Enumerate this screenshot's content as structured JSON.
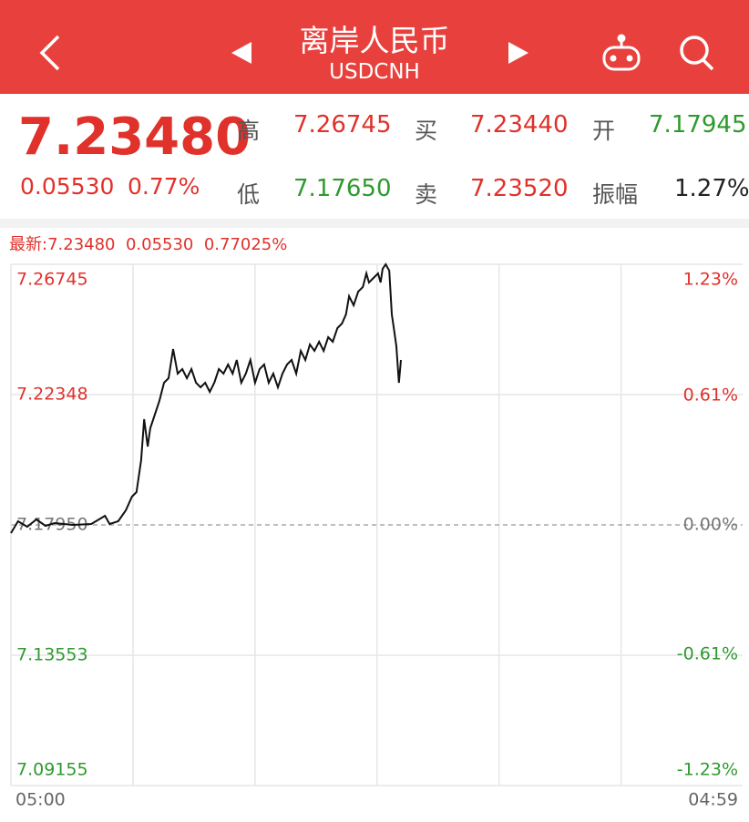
{
  "header": {
    "title": "离岸人民币",
    "subtitle": "USDCNH"
  },
  "quote": {
    "price": "7.23480",
    "change": "0.05530",
    "change_pct": "0.77%",
    "high_label": "高",
    "high": "7.26745",
    "bid_label": "买",
    "bid": "7.23440",
    "open_label": "开",
    "open": "7.17945",
    "low_label": "低",
    "low": "7.17650",
    "ask_label": "卖",
    "ask": "7.23520",
    "amplitude_label": "振幅",
    "amplitude": "1.27%"
  },
  "chart_data": {
    "type": "line",
    "summary": "最新:7.23480  0.05530  0.77025%",
    "color": "#111111",
    "x": [
      0,
      14,
      32,
      50,
      68,
      86,
      122,
      158,
      185,
      194,
      211,
      226,
      238,
      247,
      256,
      262,
      269,
      274,
      283,
      292,
      301,
      310,
      319,
      328,
      337,
      346,
      355,
      364,
      373,
      382,
      391,
      400,
      409,
      418,
      427,
      436,
      444,
      453,
      462,
      471,
      480,
      489,
      498,
      507,
      516,
      525,
      534,
      543,
      552,
      561,
      570,
      579,
      588,
      597,
      606,
      615,
      624,
      633,
      642,
      651,
      659,
      665,
      674,
      683,
      692,
      699,
      704,
      713,
      722,
      727,
      731,
      737,
      744,
      749,
      753,
      758,
      763,
      767
    ],
    "values": [
      7.17673,
      7.18073,
      7.17888,
      7.18135,
      7.17919,
      7.18012,
      7.1795,
      7.17981,
      7.18258,
      7.17981,
      7.18073,
      7.18442,
      7.18903,
      7.19057,
      7.20133,
      7.21517,
      7.20595,
      7.2121,
      7.21671,
      7.22132,
      7.22747,
      7.22901,
      7.23885,
      7.23055,
      7.23208,
      7.22901,
      7.23208,
      7.22747,
      7.22593,
      7.22747,
      7.2244,
      7.22747,
      7.23208,
      7.23055,
      7.23362,
      7.23055,
      7.23516,
      7.22747,
      7.23055,
      7.23516,
      7.22747,
      7.23208,
      7.23362,
      7.22747,
      7.23055,
      7.22593,
      7.23055,
      7.23362,
      7.23516,
      7.23055,
      7.23823,
      7.23516,
      7.24039,
      7.23823,
      7.24131,
      7.23823,
      7.24285,
      7.24131,
      7.24592,
      7.24746,
      7.25053,
      7.25668,
      7.25361,
      7.25822,
      7.25976,
      7.26437,
      7.2613,
      7.26283,
      7.26437,
      7.2613,
      7.26591,
      7.26745,
      7.26529,
      7.25053,
      7.24592,
      7.23977,
      7.22747,
      7.23516
    ],
    "xlim": [
      0,
      1439
    ],
    "xticks": [
      {
        "value": 0,
        "label": "05:00"
      },
      {
        "value": 1439,
        "label": "04:59"
      }
    ],
    "xgrid": [
      240,
      480,
      720,
      960,
      1200
    ],
    "ylim": [
      7.09155,
      7.26745
    ],
    "yticks": [
      7.09155,
      7.13553,
      {
        "value": 7.1795,
        "label": "7.17950"
      },
      7.22348,
      7.26745
    ],
    "y2lim": [
      -1.23,
      1.23
    ],
    "y2ticks": [
      {
        "value": -1.23,
        "label": "-1.23%"
      },
      {
        "value": -0.61,
        "label": "-0.61%"
      },
      {
        "value": 0,
        "label": "0.00%"
      },
      {
        "value": 0.61,
        "label": "0.61%"
      },
      {
        "value": 1.23,
        "label": "1.23%"
      }
    ]
  }
}
